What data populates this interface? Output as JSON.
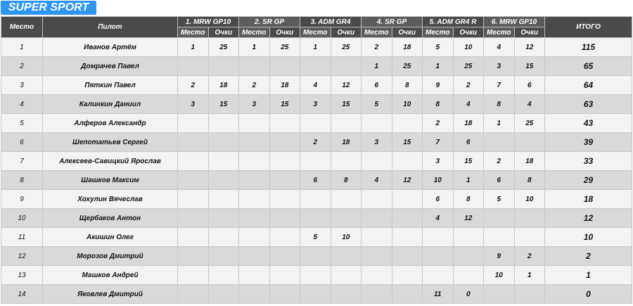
{
  "title": "SUPER SPORT",
  "headers": {
    "place": "Место",
    "pilot": "Пилот",
    "total": "ИТОГО",
    "sub_place": "Место",
    "sub_points": "Очки"
  },
  "races": [
    "1. MRW GP10",
    "2. SR GP",
    "3. ADM GR4",
    "4. SR GP",
    "5. ADM GR4 R",
    "6. MRW GP10"
  ],
  "rows": [
    {
      "place": "1",
      "pilot": "Иванов Артём",
      "r": [
        [
          "1",
          "25"
        ],
        [
          "1",
          "25"
        ],
        [
          "1",
          "25"
        ],
        [
          "2",
          "18"
        ],
        [
          "5",
          "10"
        ],
        [
          "4",
          "12"
        ]
      ],
      "total": "115"
    },
    {
      "place": "2",
      "pilot": "Домрачев Павел",
      "r": [
        [
          "",
          ""
        ],
        [
          "",
          ""
        ],
        [
          "",
          ""
        ],
        [
          "1",
          "25"
        ],
        [
          "1",
          "25"
        ],
        [
          "3",
          "15"
        ]
      ],
      "total": "65"
    },
    {
      "place": "3",
      "pilot": "Пяткин Павел",
      "r": [
        [
          "2",
          "18"
        ],
        [
          "2",
          "18"
        ],
        [
          "4",
          "12"
        ],
        [
          "6",
          "8"
        ],
        [
          "9",
          "2"
        ],
        [
          "7",
          "6"
        ]
      ],
      "total": "64"
    },
    {
      "place": "4",
      "pilot": "Калинкин Даниил",
      "r": [
        [
          "3",
          "15"
        ],
        [
          "3",
          "15"
        ],
        [
          "3",
          "15"
        ],
        [
          "5",
          "10"
        ],
        [
          "8",
          "4"
        ],
        [
          "8",
          "4"
        ]
      ],
      "total": "63"
    },
    {
      "place": "5",
      "pilot": "Алферов Александр",
      "r": [
        [
          "",
          ""
        ],
        [
          "",
          ""
        ],
        [
          "",
          ""
        ],
        [
          "",
          ""
        ],
        [
          "2",
          "18"
        ],
        [
          "1",
          "25"
        ]
      ],
      "total": "43"
    },
    {
      "place": "6",
      "pilot": "Шепотатьев Сергей",
      "r": [
        [
          "",
          ""
        ],
        [
          "",
          ""
        ],
        [
          "2",
          "18"
        ],
        [
          "3",
          "15"
        ],
        [
          "7",
          "6"
        ],
        [
          "",
          ""
        ]
      ],
      "total": "39"
    },
    {
      "place": "7",
      "pilot": "Алексеев-Савицкий Ярослав",
      "r": [
        [
          "",
          ""
        ],
        [
          "",
          ""
        ],
        [
          "",
          ""
        ],
        [
          "",
          ""
        ],
        [
          "3",
          "15"
        ],
        [
          "2",
          "18"
        ]
      ],
      "total": "33"
    },
    {
      "place": "8",
      "pilot": "Шашков Максим",
      "r": [
        [
          "",
          ""
        ],
        [
          "",
          ""
        ],
        [
          "6",
          "8"
        ],
        [
          "4",
          "12"
        ],
        [
          "10",
          "1"
        ],
        [
          "6",
          "8"
        ]
      ],
      "total": "29"
    },
    {
      "place": "9",
      "pilot": "Хохулин Вячеслав",
      "r": [
        [
          "",
          ""
        ],
        [
          "",
          ""
        ],
        [
          "",
          ""
        ],
        [
          "",
          ""
        ],
        [
          "6",
          "8"
        ],
        [
          "5",
          "10"
        ]
      ],
      "total": "18"
    },
    {
      "place": "10",
      "pilot": "Щербаков Антон",
      "r": [
        [
          "",
          ""
        ],
        [
          "",
          ""
        ],
        [
          "",
          ""
        ],
        [
          "",
          ""
        ],
        [
          "4",
          "12"
        ],
        [
          "",
          ""
        ]
      ],
      "total": "12"
    },
    {
      "place": "11",
      "pilot": "Акишин Олег",
      "r": [
        [
          "",
          ""
        ],
        [
          "",
          ""
        ],
        [
          "5",
          "10"
        ],
        [
          "",
          ""
        ],
        [
          "",
          ""
        ],
        [
          "",
          ""
        ]
      ],
      "total": "10"
    },
    {
      "place": "12",
      "pilot": "Морозов Дмитрий",
      "r": [
        [
          "",
          ""
        ],
        [
          "",
          ""
        ],
        [
          "",
          ""
        ],
        [
          "",
          ""
        ],
        [
          "",
          ""
        ],
        [
          "9",
          "2"
        ]
      ],
      "total": "2"
    },
    {
      "place": "13",
      "pilot": "Машков Андрей",
      "r": [
        [
          "",
          ""
        ],
        [
          "",
          ""
        ],
        [
          "",
          ""
        ],
        [
          "",
          ""
        ],
        [
          "",
          ""
        ],
        [
          "10",
          "1"
        ]
      ],
      "total": "1"
    },
    {
      "place": "14",
      "pilot": "Яковлев Дмитрий",
      "r": [
        [
          "",
          ""
        ],
        [
          "",
          ""
        ],
        [
          "",
          ""
        ],
        [
          "",
          ""
        ],
        [
          "11",
          "0"
        ],
        [
          "",
          ""
        ]
      ],
      "total": "0"
    }
  ]
}
